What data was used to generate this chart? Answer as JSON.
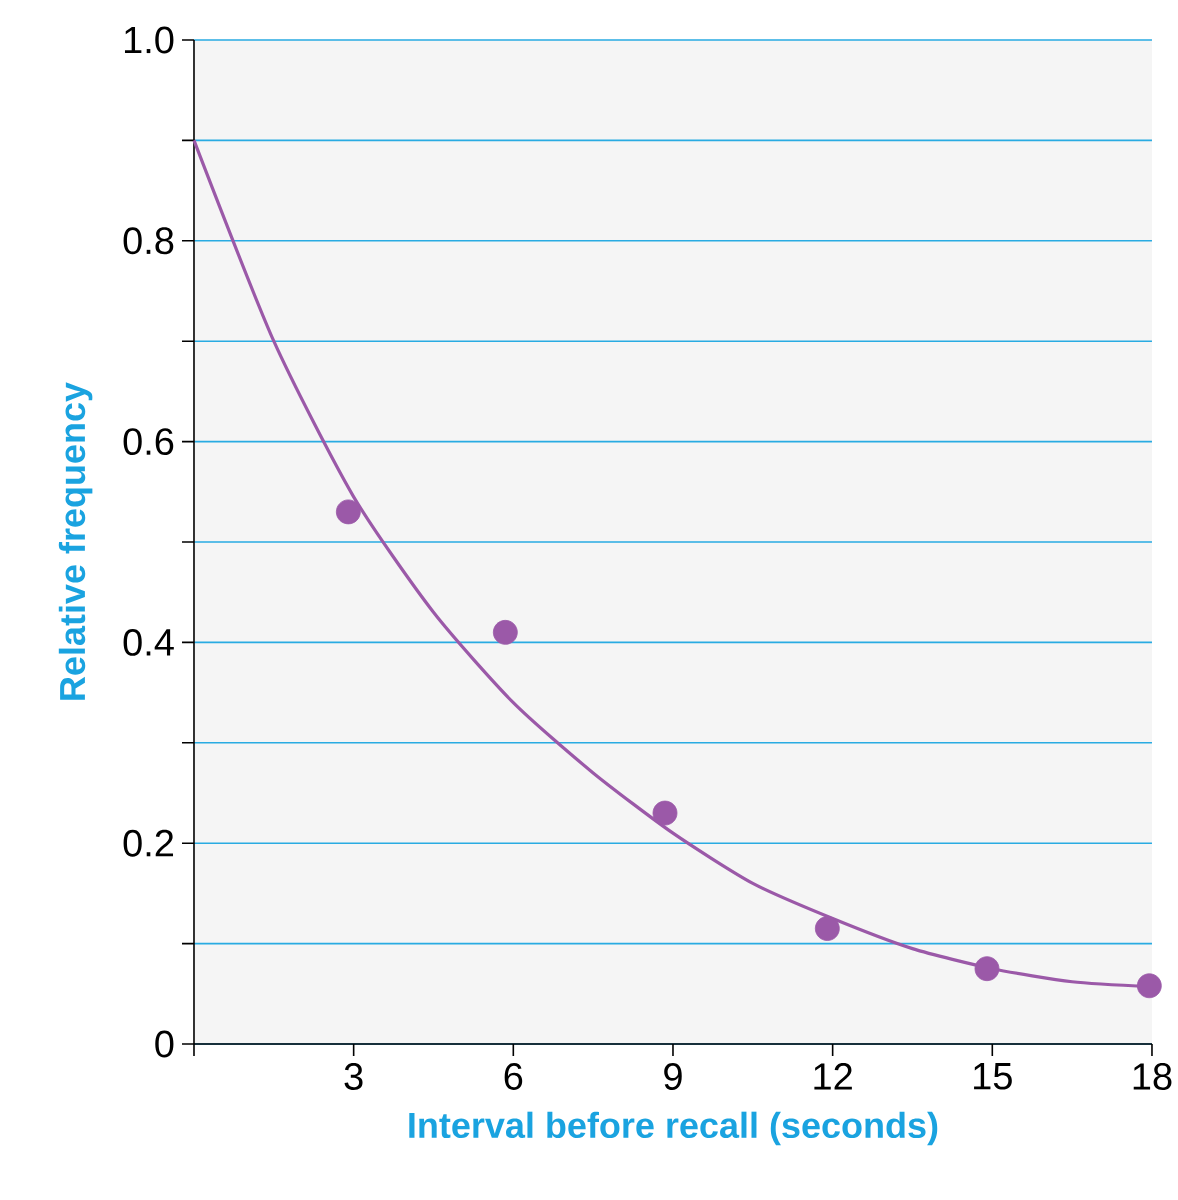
{
  "chart_data": {
    "type": "scatter",
    "xlabel": "Interval before recall (seconds)",
    "ylabel": "Relative frequency",
    "xlim": [
      0,
      18
    ],
    "ylim": [
      0,
      1
    ],
    "xticks": [
      {
        "value": 0,
        "label": null
      },
      3,
      6,
      9,
      12,
      15,
      18
    ],
    "yticks": [
      0,
      {
        "value": 0.1,
        "label": null
      },
      0.2,
      {
        "value": 0.3,
        "label": null
      },
      0.4,
      {
        "value": 0.5,
        "label": null
      },
      0.6,
      {
        "value": 0.7,
        "label": null
      },
      0.8,
      {
        "value": 0.9,
        "label": null
      },
      {
        "value": 1.0,
        "label": "1.0"
      }
    ],
    "grid": "y",
    "series": [
      {
        "color": "#9b59a8",
        "marker": "circle",
        "x": [
          2.9,
          5.85,
          8.85,
          11.9,
          14.9,
          17.95
        ],
        "values": [
          0.53,
          0.41,
          0.23,
          0.115,
          0.075,
          0.058
        ]
      },
      {
        "type": "line",
        "color": "#9b59a8",
        "marker": "none",
        "x": [
          0,
          1.5,
          3,
          4.5,
          6,
          7.5,
          9,
          10.5,
          12,
          13.5,
          15,
          16.5,
          18
        ],
        "values": [
          0.9,
          0.7,
          0.545,
          0.43,
          0.34,
          0.27,
          0.21,
          0.16,
          0.125,
          0.095,
          0.075,
          0.062,
          0.057
        ]
      }
    ]
  }
}
